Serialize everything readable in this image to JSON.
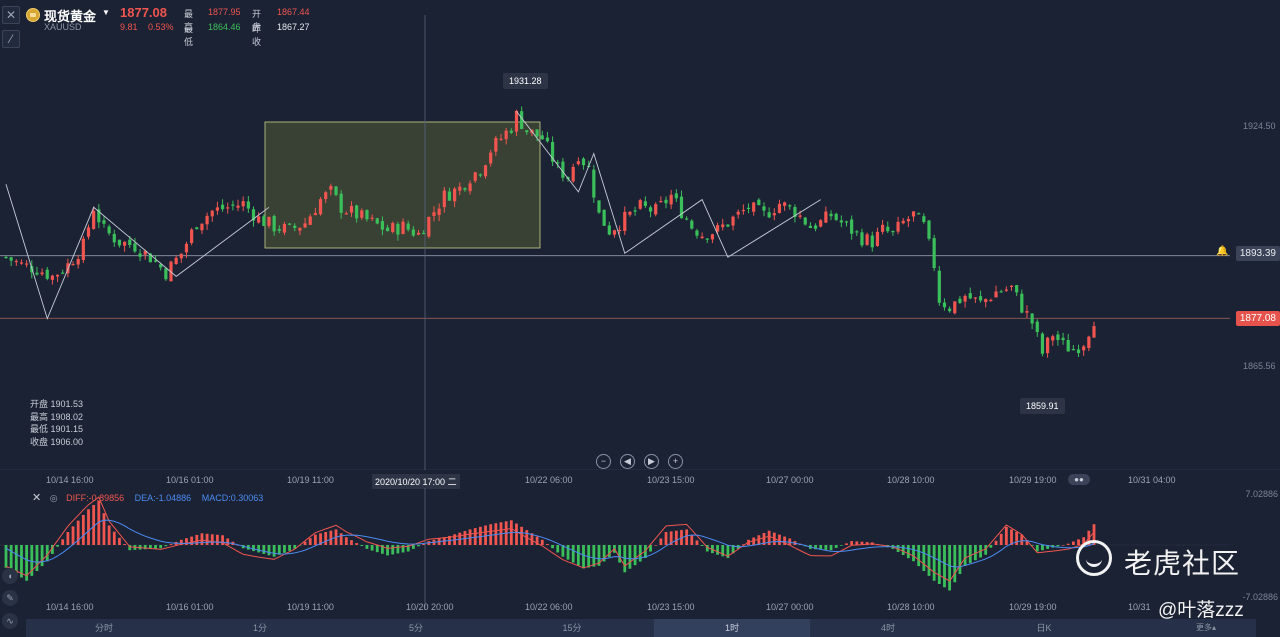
{
  "header": {
    "symbol_name": "现货黄金",
    "symbol_code": "XAUUSD",
    "price": "1877.08",
    "change": "9.81",
    "change_pct": "0.53%",
    "high_label": "最高",
    "high_value": "1877.95",
    "open_label": "开盘",
    "open_value": "1867.44",
    "low_label": "最低",
    "low_value": "1864.46",
    "prev_close_label": "昨收",
    "prev_close_value": "1867.27"
  },
  "price_axis": {
    "ticks": [
      "1924.50",
      "1865.56"
    ],
    "horizontal_line_value": "1893.39",
    "current_price_tag": "1877.08"
  },
  "callouts": {
    "high_point": "1931.28",
    "low_point": "1859.91"
  },
  "ohlc_tooltip": {
    "open": "开盘 1901.53",
    "high": "最高 1908.02",
    "low": "最低 1901.15",
    "close": "收盘 1906.00"
  },
  "navigation": {
    "zoom_out": "−",
    "prev": "◀",
    "next": "▶",
    "zoom_in": "+"
  },
  "x_axis": {
    "labels": [
      "10/14 16:00",
      "10/16 01:00",
      "10/19 11:00",
      "10/22 06:00",
      "10/23 15:00",
      "10/27 00:00",
      "10/28 10:00",
      "10/29 19:00",
      "10/31 04:00"
    ],
    "crosshair_label": "2020/10/20 17:00 二"
  },
  "macd": {
    "diff": "DIFF:-0.89856",
    "dea": "DEA:-1.04886",
    "macd": "MACD:0.30063",
    "axis_top": "7.02886",
    "axis_bottom": "-7.02886",
    "x_labels": [
      "10/14 16:00",
      "10/16 01:00",
      "10/19 11:00",
      "10/20 20:00",
      "10/22 06:00",
      "10/23 15:00",
      "10/27 00:00",
      "10/28 10:00",
      "10/29 19:00",
      "10/31"
    ]
  },
  "timeframes": {
    "items": [
      "分时",
      "1分",
      "5分",
      "15分",
      "1时",
      "4时",
      "日K"
    ],
    "active_index": 4,
    "more": "更多▴"
  },
  "watermark": {
    "brand": "老虎社区",
    "user": "@叶落zzz"
  },
  "colors": {
    "up": "#f0554f",
    "down": "#3bbf5a",
    "dea_line": "#4c8cf5",
    "box_fill": "#3e4535",
    "box_stroke": "#c9d08a"
  },
  "chart_data": {
    "type": "candlestick",
    "ylim": [
      1855,
      1935
    ],
    "price_levels": {
      "resistance_line": 1893.39,
      "current": 1877.08,
      "high": 1931.28,
      "low": 1859.91
    },
    "close_path": [
      [
        0,
        1893
      ],
      [
        3,
        1891
      ],
      [
        6,
        1890
      ],
      [
        9,
        1888
      ],
      [
        12,
        1891
      ],
      [
        15,
        1896
      ],
      [
        17,
        1906
      ],
      [
        19,
        1900
      ],
      [
        22,
        1897
      ],
      [
        25,
        1896
      ],
      [
        28,
        1893
      ],
      [
        31,
        1889
      ],
      [
        34,
        1894
      ],
      [
        37,
        1902
      ],
      [
        40,
        1905
      ],
      [
        43,
        1906
      ],
      [
        46,
        1907
      ],
      [
        49,
        1903
      ],
      [
        52,
        1901
      ],
      [
        55,
        1900
      ],
      [
        58,
        1902
      ],
      [
        61,
        1908
      ],
      [
        63,
        1910
      ],
      [
        65,
        1906
      ],
      [
        68,
        1904
      ],
      [
        71,
        1902
      ],
      [
        74,
        1900
      ],
      [
        77,
        1901
      ],
      [
        80,
        1899
      ],
      [
        82,
        1903
      ],
      [
        85,
        1909
      ],
      [
        88,
        1911
      ],
      [
        90,
        1914
      ],
      [
        92,
        1916
      ],
      [
        94,
        1921
      ],
      [
        96,
        1924
      ],
      [
        98,
        1927
      ],
      [
        99,
        1930
      ],
      [
        101,
        1926
      ],
      [
        104,
        1924
      ],
      [
        107,
        1916
      ],
      [
        109,
        1914
      ],
      [
        111,
        1920
      ],
      [
        113,
        1916
      ],
      [
        115,
        1904
      ],
      [
        117,
        1900
      ],
      [
        120,
        1903
      ],
      [
        123,
        1906
      ],
      [
        126,
        1905
      ],
      [
        129,
        1909
      ],
      [
        131,
        1905
      ],
      [
        133,
        1901
      ],
      [
        135,
        1899
      ],
      [
        138,
        1900
      ],
      [
        141,
        1903
      ],
      [
        144,
        1906
      ],
      [
        147,
        1904
      ],
      [
        150,
        1907
      ],
      [
        153,
        1905
      ],
      [
        156,
        1901
      ],
      [
        158,
        1902
      ],
      [
        160,
        1904
      ],
      [
        162,
        1902
      ],
      [
        164,
        1900
      ],
      [
        166,
        1898
      ],
      [
        168,
        1897
      ],
      [
        170,
        1900
      ],
      [
        172,
        1899
      ],
      [
        174,
        1902
      ],
      [
        176,
        1904
      ],
      [
        178,
        1901
      ],
      [
        180,
        1891
      ],
      [
        181,
        1882
      ],
      [
        183,
        1880
      ],
      [
        186,
        1883
      ],
      [
        189,
        1881
      ],
      [
        192,
        1884
      ],
      [
        195,
        1885
      ],
      [
        197,
        1880
      ],
      [
        199,
        1876
      ],
      [
        201,
        1868
      ],
      [
        203,
        1873
      ],
      [
        205,
        1870
      ],
      [
        207,
        1869
      ],
      [
        209,
        1871
      ],
      [
        211,
        1877
      ]
    ],
    "macd_histogram": [
      [
        0,
        -3.5
      ],
      [
        4,
        -5.5
      ],
      [
        8,
        -2.5
      ],
      [
        12,
        2.0
      ],
      [
        16,
        5.5
      ],
      [
        18,
        6.8
      ],
      [
        20,
        3.0
      ],
      [
        24,
        -0.8
      ],
      [
        30,
        -0.5
      ],
      [
        34,
        0.8
      ],
      [
        38,
        1.8
      ],
      [
        42,
        1.5
      ],
      [
        46,
        -0.5
      ],
      [
        52,
        -1.8
      ],
      [
        56,
        -0.6
      ],
      [
        60,
        1.6
      ],
      [
        64,
        2.4
      ],
      [
        66,
        1.2
      ],
      [
        70,
        -0.6
      ],
      [
        74,
        -1.6
      ],
      [
        78,
        -1.0
      ],
      [
        82,
        0.6
      ],
      [
        86,
        1.4
      ],
      [
        90,
        2.4
      ],
      [
        94,
        3.2
      ],
      [
        98,
        3.8
      ],
      [
        100,
        2.8
      ],
      [
        104,
        0.8
      ],
      [
        108,
        -1.8
      ],
      [
        112,
        -3.6
      ],
      [
        115,
        -3.2
      ],
      [
        118,
        -1.2
      ],
      [
        120,
        -4.2
      ],
      [
        124,
        -2.0
      ],
      [
        128,
        2.0
      ],
      [
        132,
        2.4
      ],
      [
        136,
        -1.0
      ],
      [
        140,
        -2.0
      ],
      [
        144,
        0.8
      ],
      [
        148,
        2.2
      ],
      [
        152,
        1.0
      ],
      [
        156,
        -0.6
      ],
      [
        160,
        -0.8
      ],
      [
        164,
        0.6
      ],
      [
        168,
        0.4
      ],
      [
        172,
        -0.6
      ],
      [
        176,
        -2.5
      ],
      [
        180,
        -5.5
      ],
      [
        183,
        -7.0
      ],
      [
        186,
        -3.2
      ],
      [
        190,
        -1.5
      ],
      [
        194,
        2.8
      ],
      [
        197,
        1.6
      ],
      [
        200,
        -1.0
      ],
      [
        203,
        -0.4
      ],
      [
        206,
        0.2
      ],
      [
        209,
        1.2
      ],
      [
        211,
        3.2
      ]
    ]
  }
}
